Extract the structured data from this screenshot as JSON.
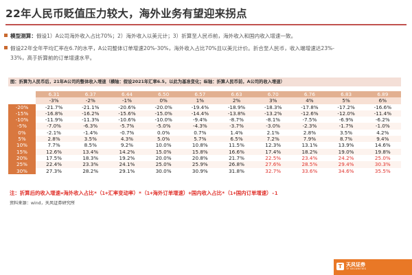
{
  "title": "22年人民币贬值压力较大，海外业务有望迎来拐点",
  "bullets": [
    {
      "label": "模型测算：",
      "text": "假设1）A公司海外收入占比70%；2）海外收入以美元计；3）折算至人民币前，海外收入和国内收入增速一致。"
    },
    {
      "text": "假设22年全年平均汇率在6.7的水平，A公司整体订单增速20%-30%，海外收入占比70%且以美元计价。折合至人民币，收入端增速达23%-"
    },
    {
      "text": "33%，高于折算前的订单增速水平。"
    }
  ],
  "table_title": "图：折算为人民币后，21年A公司的整体收入增速（横轴：假设2021年汇率6.5，以此为基准变化；纵轴：折算人民币前，A公司的收入增速）",
  "fx_rates": [
    "6.31",
    "6.37",
    "6.44",
    "6.50",
    "6.57",
    "6.63",
    "6.70",
    "6.76",
    "6.83",
    "6.89"
  ],
  "fx_changes": [
    "-3%",
    "-2%",
    "-1%",
    "0%",
    "1%",
    "2%",
    "3%",
    "4%",
    "5%",
    "6%"
  ],
  "rows": [
    {
      "label": "-20%",
      "values": [
        "-21.7%",
        "-21.1%",
        "-20.6%",
        "-20.0%",
        "-19.4%",
        "-18.9%",
        "-18.3%",
        "-17.8%",
        "-17.2%",
        "-16.6%"
      ]
    },
    {
      "label": "-15%",
      "values": [
        "-16.8%",
        "-16.2%",
        "-15.6%",
        "-15.0%",
        "-14.4%",
        "-13.8%",
        "-13.2%",
        "-12.6%",
        "-12.0%",
        "-11.4%"
      ]
    },
    {
      "label": "-10%",
      "values": [
        "-11.9%",
        "-11.3%",
        "-10.6%",
        "-10.0%",
        "-9.4%",
        "-8.7%",
        "-8.1%",
        "-7.5%",
        "-6.9%",
        "-6.2%"
      ]
    },
    {
      "label": "-5%",
      "values": [
        "-7.0%",
        "-6.3%",
        "-5.7%",
        "-5.0%",
        "-4.3%",
        "-3.7%",
        "-3.0%",
        "-2.3%",
        "-1.7%",
        "-1.0%"
      ]
    },
    {
      "label": "0%",
      "values": [
        "-2.1%",
        "-1.4%",
        "-0.7%",
        "0.0%",
        "0.7%",
        "1.4%",
        "2.1%",
        "2.8%",
        "3.5%",
        "4.2%"
      ]
    },
    {
      "label": "5%",
      "values": [
        "2.8%",
        "3.5%",
        "4.3%",
        "5.0%",
        "5.7%",
        "6.5%",
        "7.2%",
        "7.9%",
        "8.7%",
        "9.4%"
      ]
    },
    {
      "label": "10%",
      "values": [
        "7.7%",
        "8.5%",
        "9.2%",
        "10.0%",
        "10.8%",
        "11.5%",
        "12.3%",
        "13.1%",
        "13.9%",
        "14.6%"
      ]
    },
    {
      "label": "15%",
      "values": [
        "12.6%",
        "13.4%",
        "14.2%",
        "15.0%",
        "15.8%",
        "16.6%",
        "17.4%",
        "18.2%",
        "19.0%",
        "19.8%"
      ]
    },
    {
      "label": "20%",
      "values": [
        "17.5%",
        "18.3%",
        "19.2%",
        "20.0%",
        "20.8%",
        "21.7%",
        "22.5%",
        "23.4%",
        "24.2%",
        "25.0%"
      ]
    },
    {
      "label": "25%",
      "values": [
        "22.4%",
        "23.3%",
        "24.1%",
        "25.0%",
        "25.9%",
        "26.8%",
        "27.6%",
        "28.5%",
        "29.4%",
        "30.3%"
      ]
    },
    {
      "label": "30%",
      "values": [
        "27.3%",
        "28.2%",
        "29.1%",
        "30.0%",
        "30.9%",
        "31.8%",
        "32.7%",
        "33.6%",
        "34.6%",
        "35.5%"
      ]
    }
  ],
  "note": "注：折算后的收入增速=海外收入占比*（1+汇率变动率）*（1+海外订单增速）+国内收入占比*（1+国内订单增速）-1",
  "source": "资料来源：wind，天风证券研究所",
  "logo": {
    "name": "天风证券",
    "sub": "TF SECURITIES"
  },
  "colors": {
    "accent": "#c0504d",
    "header": "#e2b091",
    "row_label": "#d9783f",
    "highlight_text": "#e0312b",
    "logo_bg": "#e97826"
  }
}
